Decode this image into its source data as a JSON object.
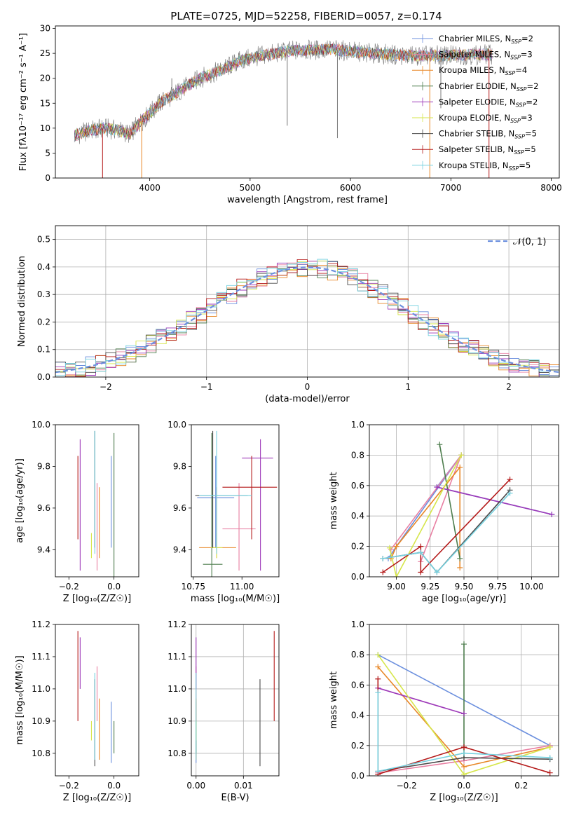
{
  "colors": {
    "Chabrier MILES": "#6b8fde",
    "Salpeter MILES": "#e87fa2",
    "Kroupa MILES": "#e88727",
    "Chabrier ELODIE": "#4d7d4d",
    "Salpeter ELODIE": "#9d38b8",
    "Kroupa ELODIE": "#d6e64a",
    "Chabrier STELIB": "#4a4a4a",
    "Salpeter STELIB": "#b51b1b",
    "Kroupa STELIB": "#76d1df",
    "normal": "#6b8fde"
  },
  "chart_data": [
    {
      "id": "spectrum",
      "type": "line",
      "title": "PLATE=0725, MJD=52258, FIBERID=0057, z=0.174",
      "xlabel": "wavelength [Angstrom, rest frame]",
      "ylabel": "Flux [fλ10⁻¹⁷ erg cm⁻² s⁻¹ A⁻¹]",
      "xlim": [
        3060,
        8080
      ],
      "ylim": [
        0,
        30.5
      ],
      "xticks": [
        4000,
        5000,
        6000,
        7000,
        8000
      ],
      "yticks": [
        0,
        5,
        10,
        15,
        20,
        25,
        30
      ],
      "grid": false,
      "legend_position": "upper right",
      "legend": [
        {
          "model": "Chabrier MILES",
          "label": "Chabrier MILES, N",
          "sub": "SSP",
          "suffix": "=2"
        },
        {
          "model": "Salpeter MILES",
          "label": "Salpeter MILES, N",
          "sub": "SSP",
          "suffix": "=3"
        },
        {
          "model": "Kroupa MILES",
          "label": "Kroupa MILES, N",
          "sub": "SSP",
          "suffix": "=4"
        },
        {
          "model": "Chabrier ELODIE",
          "label": "Chabrier ELODIE, N",
          "sub": "SSP",
          "suffix": "=2"
        },
        {
          "model": "Salpeter ELODIE",
          "label": "Salpeter ELODIE, N",
          "sub": "SSP",
          "suffix": "=2"
        },
        {
          "model": "Kroupa ELODIE",
          "label": "Kroupa ELODIE, N",
          "sub": "SSP",
          "suffix": "=3"
        },
        {
          "model": "Chabrier STELIB",
          "label": "Chabrier STELIB, N",
          "sub": "SSP",
          "suffix": "=5"
        },
        {
          "model": "Salpeter STELIB",
          "label": "Salpeter STELIB, N",
          "sub": "SSP",
          "suffix": "=5"
        },
        {
          "model": "Kroupa STELIB",
          "label": "Kroupa STELIB, N",
          "sub": "SSP",
          "suffix": "=5"
        }
      ],
      "continuum": [
        [
          3250,
          8.5
        ],
        [
          3400,
          9.5
        ],
        [
          3550,
          10
        ],
        [
          3700,
          9.5
        ],
        [
          3800,
          8.8
        ],
        [
          3900,
          11
        ],
        [
          4000,
          13
        ],
        [
          4100,
          15
        ],
        [
          4300,
          17.5
        ],
        [
          4500,
          20
        ],
        [
          4700,
          21.5
        ],
        [
          4900,
          23.5
        ],
        [
          5100,
          24.5
        ],
        [
          5400,
          25.5
        ],
        [
          5800,
          25.8
        ],
        [
          6200,
          25
        ],
        [
          6600,
          24.5
        ],
        [
          7000,
          24.6
        ],
        [
          7400,
          24.8
        ]
      ],
      "dips": [
        [
          3530,
          0
        ],
        [
          3920,
          0
        ],
        [
          4220,
          20
        ],
        [
          5370,
          10.5
        ],
        [
          5870,
          8
        ],
        [
          6790,
          0
        ],
        [
          6900,
          14
        ],
        [
          7380,
          0
        ]
      ]
    },
    {
      "id": "residuals",
      "type": "area",
      "xlabel": "(data-model)/error",
      "ylabel": "Normed distribution",
      "xlim": [
        -2.5,
        2.5
      ],
      "ylim": [
        0,
        0.55
      ],
      "xticks": [
        -2,
        -1,
        0,
        1,
        2
      ],
      "yticks": [
        0.0,
        0.1,
        0.2,
        0.3,
        0.4,
        0.5
      ],
      "grid": true,
      "legend_position": "upper right",
      "normal_label": "𝒩(0, 1)",
      "bin_width": 0.1
    },
    {
      "id": "age-vs-Z",
      "type": "scatter",
      "xlabel": "Z [log₁₀(Z/Z☉)]",
      "ylabel": "age  [log₁₀(age/yr)]",
      "xlim": [
        -0.26,
        0.11
      ],
      "ylim": [
        9.27,
        10.0
      ],
      "xticks": [
        -0.2,
        0.0
      ],
      "yticks": [
        9.4,
        9.6,
        9.8,
        10.0
      ],
      "grid": false
    },
    {
      "id": "age-vs-mass",
      "type": "scatter",
      "xlabel": "mass [log₁₀(M/M☉)]",
      "ylabel": "",
      "xlim": [
        10.74,
        11.19
      ],
      "ylim": [
        9.27,
        10.0
      ],
      "xticks": [
        10.75,
        11.0
      ],
      "yticks": [
        9.4,
        9.6,
        9.8,
        10.0
      ],
      "grid": false
    },
    {
      "id": "weight-vs-age",
      "type": "line",
      "xlabel": "age  [log₁₀(age/yr)]",
      "ylabel": "mass weight",
      "xlim": [
        8.8,
        10.2
      ],
      "ylim": [
        0,
        1.0
      ],
      "xticks": [
        9.0,
        9.25,
        9.5,
        9.75,
        10.0
      ],
      "yticks": [
        0.0,
        0.2,
        0.4,
        0.6,
        0.8,
        1.0
      ],
      "grid": true
    },
    {
      "id": "mass-vs-Z",
      "type": "scatter",
      "xlabel": "Z [log₁₀(Z/Z☉)]",
      "ylabel": "mass [log₁₀(M/M☉)]",
      "xlim": [
        -0.26,
        0.11
      ],
      "ylim": [
        10.73,
        11.2
      ],
      "xticks": [
        -0.2,
        0.0
      ],
      "yticks": [
        10.8,
        10.9,
        11.0,
        11.1,
        11.2
      ],
      "grid": false
    },
    {
      "id": "mass-vs-EBV",
      "type": "scatter",
      "xlabel": "E(B-V)",
      "ylabel": "",
      "xlim": [
        -0.001,
        0.0175
      ],
      "ylim": [
        10.73,
        11.2
      ],
      "xticks": [
        0.0,
        0.01
      ],
      "yticks": [
        10.8,
        10.9,
        11.0,
        11.1,
        11.2
      ],
      "grid": true
    },
    {
      "id": "weight-vs-Z",
      "type": "line",
      "xlabel": "Z [log₁₀(Z/Z☉)]",
      "ylabel": "mass weight",
      "xlim": [
        -0.33,
        0.33
      ],
      "ylim": [
        0,
        1.0
      ],
      "xticks": [
        -0.2,
        0.0,
        0.2
      ],
      "yticks": [
        0.0,
        0.2,
        0.4,
        0.6,
        0.8,
        1.0
      ],
      "grid": true
    }
  ],
  "models": [
    {
      "name": "Chabrier MILES",
      "Z": -0.012,
      "Zlo": -0.16,
      "Zhi": 0.01,
      "age": 9.65,
      "ageLo": 9.41,
      "ageHi": 9.85,
      "mass": 10.865,
      "massLo": 10.77,
      "massHi": 10.96,
      "ebv": 0.0,
      "ebvLo": 0.0,
      "ebvHi": 0.0,
      "w_age": [
        [
          8.94,
          0.12
        ],
        [
          9.0,
          0.2
        ],
        [
          9.48,
          0.8
        ],
        [
          9.3,
          0.59
        ],
        [
          10.15,
          0.41
        ]
      ],
      "w_Z": [
        [
          -0.3,
          0.8
        ],
        [
          0.3,
          0.2
        ]
      ]
    },
    {
      "name": "Salpeter MILES",
      "Z": -0.075,
      "Zlo": -0.1,
      "Zhi": 0.005,
      "age": 9.5,
      "ageLo": 9.3,
      "ageHi": 9.72,
      "mass": 10.985,
      "massLo": 10.9,
      "massHi": 11.07,
      "ebv": 0.0,
      "ebvLo": 0.0,
      "ebvHi": 0.0,
      "w_age": [
        [
          8.96,
          0.18
        ],
        [
          9.48,
          0.8
        ],
        [
          9.18,
          0.1
        ]
      ],
      "w_Z": [
        [
          -0.3,
          0.02
        ],
        [
          0.0,
          0.1
        ],
        [
          0.3,
          0.2
        ]
      ]
    },
    {
      "name": "Kroupa MILES",
      "Z": -0.065,
      "Zlo": -0.12,
      "Zhi": -0.06,
      "age": 9.41,
      "ageLo": 9.36,
      "ageHi": 9.7,
      "mass": 10.87,
      "massLo": 10.78,
      "massHi": 10.97,
      "ebv": 0.0,
      "ebvLo": 0.0,
      "ebvHi": 0.0,
      "w_age": [
        [
          8.96,
          0.12
        ],
        [
          9.0,
          0.2
        ],
        [
          9.47,
          0.72
        ],
        [
          9.47,
          0.06
        ]
      ],
      "w_Z": [
        [
          -0.3,
          0.72
        ],
        [
          0.0,
          0.06
        ],
        [
          0.3,
          0.19
        ]
      ]
    },
    {
      "name": "Chabrier ELODIE",
      "Z": 0.0,
      "Zlo": -0.1,
      "Zhi": 0.1,
      "age": 9.33,
      "ageLo": 9.27,
      "ageHi": 9.96,
      "mass": 10.845,
      "massLo": 10.8,
      "massHi": 10.9,
      "ebv": 0.0,
      "ebvLo": 0.0,
      "ebvHi": 0.0,
      "w_age": [
        [
          9.47,
          0.12
        ],
        [
          9.32,
          0.87
        ]
      ],
      "w_Z": [
        [
          0.0,
          0.87
        ],
        [
          0.0,
          0.12
        ]
      ]
    },
    {
      "name": "Salpeter ELODIE",
      "Z": -0.15,
      "Zlo": -0.17,
      "Zhi": 0.05,
      "age": 9.84,
      "ageLo": 9.3,
      "ageHi": 9.93,
      "mass": 11.095,
      "massLo": 11.0,
      "massHi": 11.16,
      "ebv": 0.0,
      "ebvLo": 0.0,
      "ebvHi": 0.0,
      "w_age": [
        [
          9.3,
          0.59
        ],
        [
          10.15,
          0.41
        ]
      ],
      "w_Z": [
        [
          -0.3,
          0.58
        ],
        [
          0.0,
          0.41
        ]
      ]
    },
    {
      "name": "Kroupa ELODIE",
      "Z": -0.1,
      "Zlo": -0.16,
      "Zhi": -0.05,
      "age": 9.41,
      "ageLo": 9.36,
      "ageHi": 9.48,
      "mass": 10.87,
      "massLo": 10.84,
      "massHi": 10.9,
      "ebv": 0.0,
      "ebvLo": 0.0,
      "ebvHi": 0.0,
      "w_age": [
        [
          8.95,
          0.19
        ],
        [
          9.0,
          0.0
        ],
        [
          9.48,
          0.8
        ]
      ],
      "w_Z": [
        [
          -0.3,
          0.8
        ],
        [
          0.0,
          0.01
        ],
        [
          0.3,
          0.19
        ]
      ]
    },
    {
      "name": "Chabrier STELIB",
      "Z": -0.085,
      "Zlo": -0.16,
      "Zhi": 0.05,
      "age": 9.66,
      "ageLo": 9.41,
      "ageHi": 9.97,
      "mass": 10.85,
      "massLo": 10.76,
      "massHi": 11.03,
      "ebv": 0.0135,
      "ebvLo": 0.0135,
      "ebvHi": 0.0135,
      "w_age": [
        [
          8.9,
          0.12
        ],
        [
          9.18,
          0.16
        ],
        [
          9.3,
          0.03
        ],
        [
          9.84,
          0.57
        ]
      ],
      "w_Z": [
        [
          -0.3,
          0.03
        ],
        [
          0.0,
          0.12
        ],
        [
          0.3,
          0.11
        ]
      ]
    },
    {
      "name": "Salpeter STELIB",
      "Z": -0.16,
      "Zlo": -0.25,
      "Zhi": -0.16,
      "age": 9.7,
      "ageLo": 9.45,
      "ageHi": 9.85,
      "mass": 11.05,
      "massLo": 10.9,
      "massHi": 11.18,
      "ebv": 0.0165,
      "ebvLo": 0.0165,
      "ebvHi": 0.0165,
      "w_age": [
        [
          8.9,
          0.03
        ],
        [
          9.18,
          0.2
        ],
        [
          9.18,
          0.03
        ],
        [
          9.84,
          0.64
        ]
      ],
      "w_Z": [
        [
          -0.3,
          0.64
        ],
        [
          -0.3,
          0.01
        ],
        [
          0.0,
          0.19
        ],
        [
          0.3,
          0.02
        ]
      ]
    },
    {
      "name": "Kroupa STELIB",
      "Z": -0.085,
      "Zlo": -0.18,
      "Zhi": 0.1,
      "age": 9.66,
      "ageLo": 9.38,
      "ageHi": 9.97,
      "mass": 10.87,
      "massLo": 10.78,
      "massHi": 11.05,
      "ebv": 0.0,
      "ebvLo": 0.0,
      "ebvHi": 0.0,
      "w_age": [
        [
          8.9,
          0.12
        ],
        [
          9.18,
          0.16
        ],
        [
          9.3,
          0.03
        ],
        [
          9.84,
          0.55
        ]
      ],
      "w_Z": [
        [
          -0.3,
          0.55
        ],
        [
          -0.3,
          0.03
        ],
        [
          0.0,
          0.15
        ],
        [
          0.3,
          0.12
        ]
      ]
    }
  ]
}
